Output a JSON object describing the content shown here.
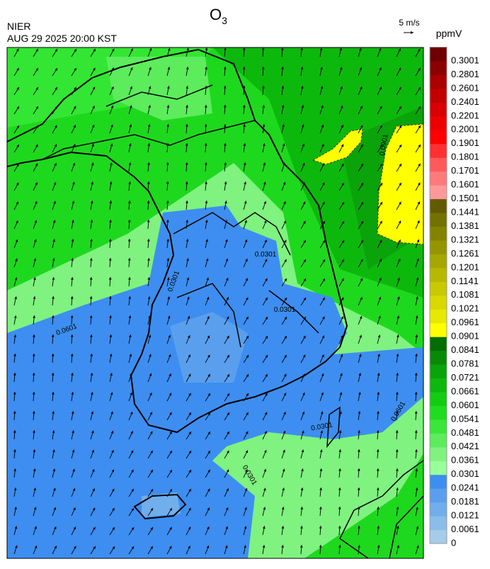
{
  "header": {
    "title": "O",
    "title_subscript": "3",
    "agency": "NIER",
    "timestamp": "AUG 29 2025 20:00 KST",
    "wind_scale": "5 m/s"
  },
  "colorbar": {
    "unit": "ppmV",
    "labels": [
      "0",
      "0.0061",
      "0.0121",
      "0.0181",
      "0.0241",
      "0.0301",
      "0.0361",
      "0.0421",
      "0.0481",
      "0.0541",
      "0.0601",
      "0.0661",
      "0.0721",
      "0.0781",
      "0.0841",
      "0.0901",
      "0.0961",
      "0.1021",
      "0.1081",
      "0.1141",
      "0.1201",
      "0.1261",
      "0.1321",
      "0.1381",
      "0.1441",
      "0.1501",
      "0.1601",
      "0.1701",
      "0.1801",
      "0.1901",
      "0.2001",
      "0.2201",
      "0.2401",
      "0.2601",
      "0.2801",
      "0.3001"
    ],
    "colors": [
      "#a3cde8",
      "#8abdea",
      "#70aeec",
      "#5a9fed",
      "#3d8ef0",
      "#99ff99",
      "#7ff27f",
      "#5cec5c",
      "#3ae63a",
      "#1edc1e",
      "#12cc12",
      "#0db80d",
      "#0aa30a",
      "#078a07",
      "#006e00",
      "#ffff00",
      "#e8e800",
      "#d9d900",
      "#c9c900",
      "#b8b800",
      "#a6a600",
      "#959500",
      "#838300",
      "#727200",
      "#635a00",
      "#ff9999",
      "#ff7a7a",
      "#ff5a5a",
      "#ff3030",
      "#ff0000",
      "#ee0000",
      "#d80000",
      "#c20000",
      "#aa0000",
      "#8c0000",
      "#6e0000"
    ]
  },
  "map": {
    "contour_labels": [
      "0.0901",
      "0.0301",
      "0.0301",
      "0.0301",
      "0.0601",
      "0.0301",
      "0.0601",
      "0.0301"
    ]
  }
}
